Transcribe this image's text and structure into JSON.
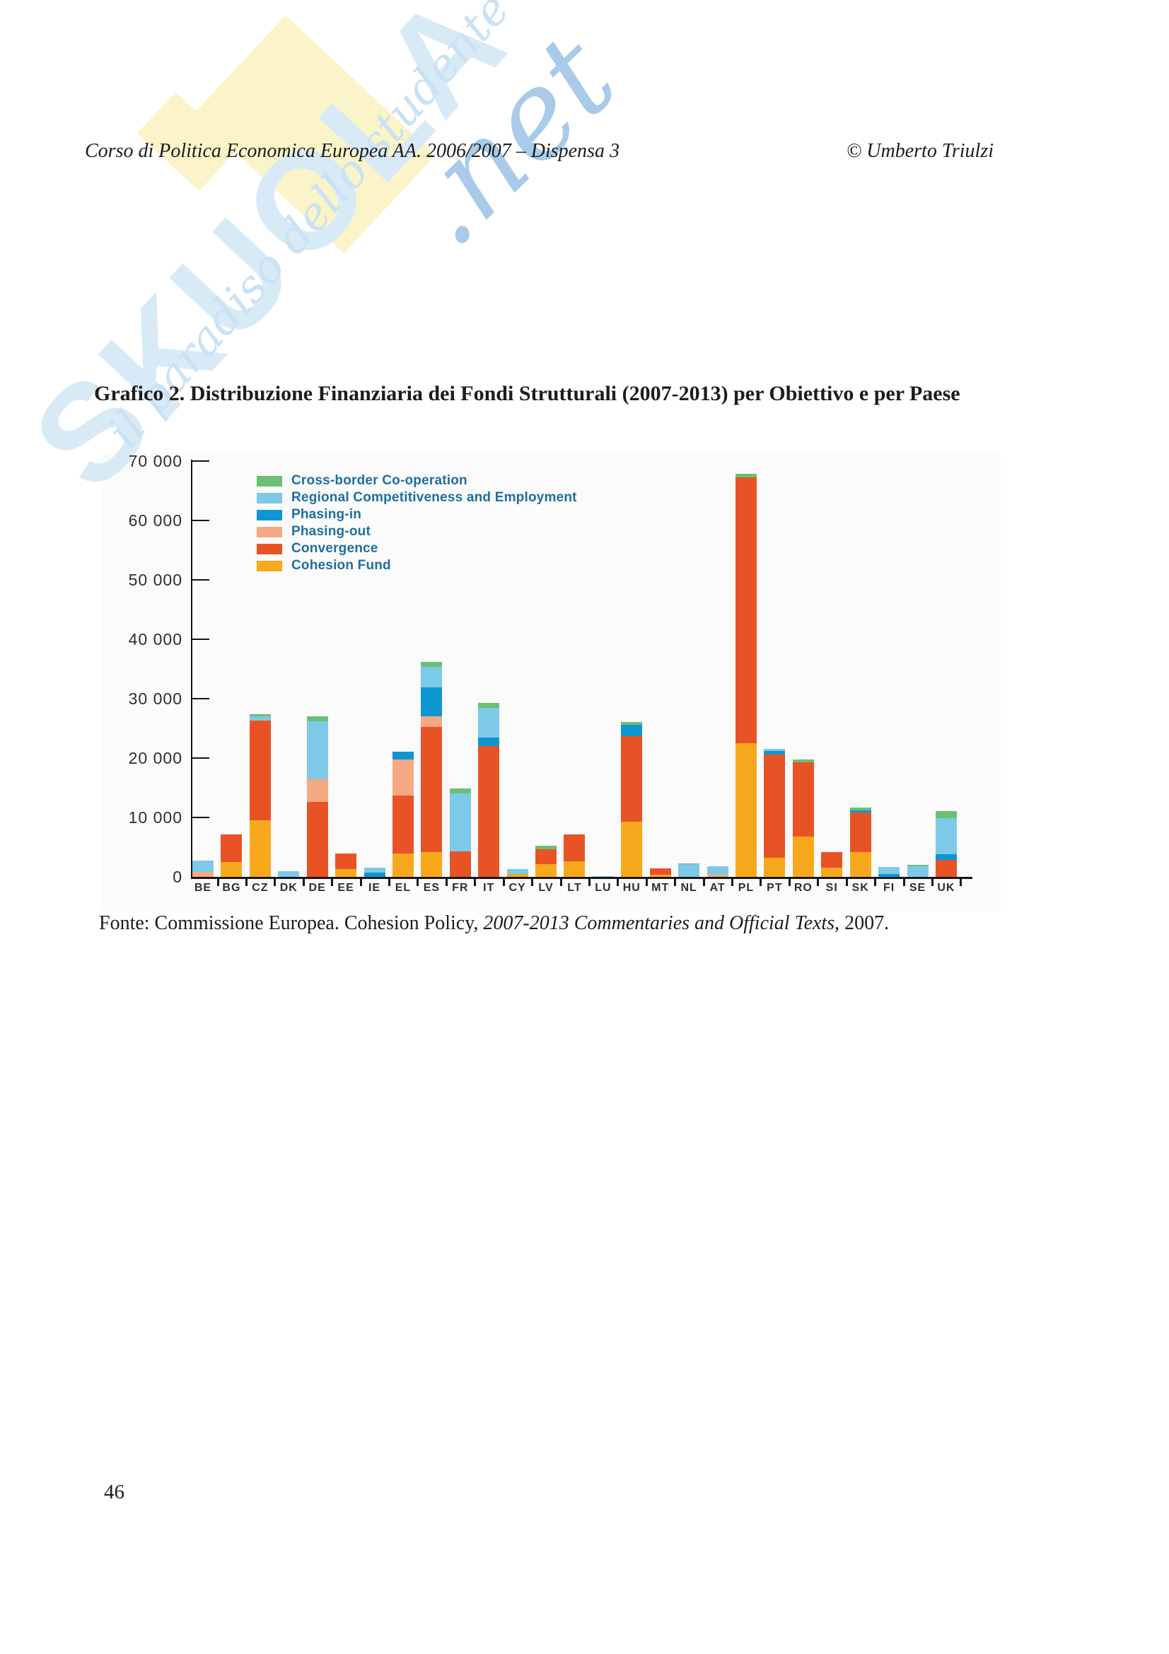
{
  "page": {
    "header_left": "Corso di Politica Economica Europea AA. 2006/2007 – Dispensa  3",
    "header_right": "© Umberto Triulzi",
    "title": "Grafico 2. Distribuzione Finanziaria dei Fondi Strutturali (2007-2013) per Obiettivo e per Paese",
    "source_prefix": "Fonte: Commissione Europea. Cohesion Policy, ",
    "source_italic": "2007-2013 Commentaries and Official Texts",
    "source_suffix": ", 2007.",
    "page_number": "46"
  },
  "watermark": {
    "brand": "SKUOLA",
    "brand_suffix": ".net",
    "tagline": "il paradiso dello studente"
  },
  "chart_data": {
    "type": "bar",
    "stacked": true,
    "ylim": [
      0,
      70000
    ],
    "ytick_step": 10000,
    "ytick_labels": [
      "0",
      "10 000",
      "20 000",
      "30 000",
      "40 000",
      "50 000",
      "60 000",
      "70 000"
    ],
    "grid": false,
    "legend_position": "top-left-inside",
    "categories": [
      "BE",
      "BG",
      "CZ",
      "DK",
      "DE",
      "EE",
      "IE",
      "EL",
      "ES",
      "FR",
      "IT",
      "CY",
      "LV",
      "LT",
      "LU",
      "HU",
      "MT",
      "NL",
      "AT",
      "PL",
      "PT",
      "RO",
      "SI",
      "SK",
      "FI",
      "SE",
      "UK"
    ],
    "series": [
      {
        "name": "Cohesion Fund",
        "color": "#f8a81c",
        "values": [
          0,
          2500,
          9500,
          0,
          0,
          1300,
          0,
          3900,
          4200,
          0,
          0,
          500,
          2100,
          2600,
          0,
          9300,
          300,
          0,
          0,
          22500,
          3200,
          6800,
          1500,
          4200,
          0,
          0,
          0
        ]
      },
      {
        "name": "Convergence",
        "color": "#e85326",
        "values": [
          0,
          4600,
          16800,
          0,
          12600,
          2600,
          0,
          9800,
          21100,
          4300,
          22000,
          0,
          2500,
          4600,
          0,
          14400,
          1100,
          0,
          0,
          44800,
          17400,
          12500,
          2700,
          6600,
          0,
          0,
          2900
        ]
      },
      {
        "name": "Phasing-out",
        "color": "#f4a983",
        "values": [
          800,
          0,
          0,
          0,
          3800,
          0,
          0,
          6100,
          1700,
          0,
          0,
          0,
          0,
          0,
          0,
          0,
          0,
          0,
          300,
          0,
          0,
          0,
          0,
          0,
          0,
          0,
          0
        ]
      },
      {
        "name": "Phasing-in",
        "color": "#0d96d2",
        "values": [
          0,
          0,
          0,
          0,
          0,
          0,
          700,
          1300,
          4900,
          0,
          1400,
          0,
          0,
          0,
          0,
          1900,
          0,
          0,
          0,
          0,
          600,
          0,
          0,
          400,
          500,
          0,
          950
        ]
      },
      {
        "name": "Regional Competitiveness and Employment",
        "color": "#7cc9e8",
        "values": [
          1900,
          0,
          700,
          1000,
          9800,
          0,
          800,
          0,
          3500,
          9800,
          5100,
          800,
          0,
          0,
          100,
          0,
          0,
          2100,
          1500,
          0,
          300,
          0,
          0,
          0,
          1200,
          1800,
          6000
        ]
      },
      {
        "name": "Cross-border Co-operation",
        "color": "#6cbf74",
        "values": [
          0,
          0,
          400,
          0,
          800,
          0,
          0,
          0,
          800,
          800,
          800,
          0,
          600,
          0,
          0,
          500,
          0,
          200,
          0,
          600,
          0,
          500,
          0,
          500,
          0,
          200,
          1200
        ]
      }
    ]
  }
}
